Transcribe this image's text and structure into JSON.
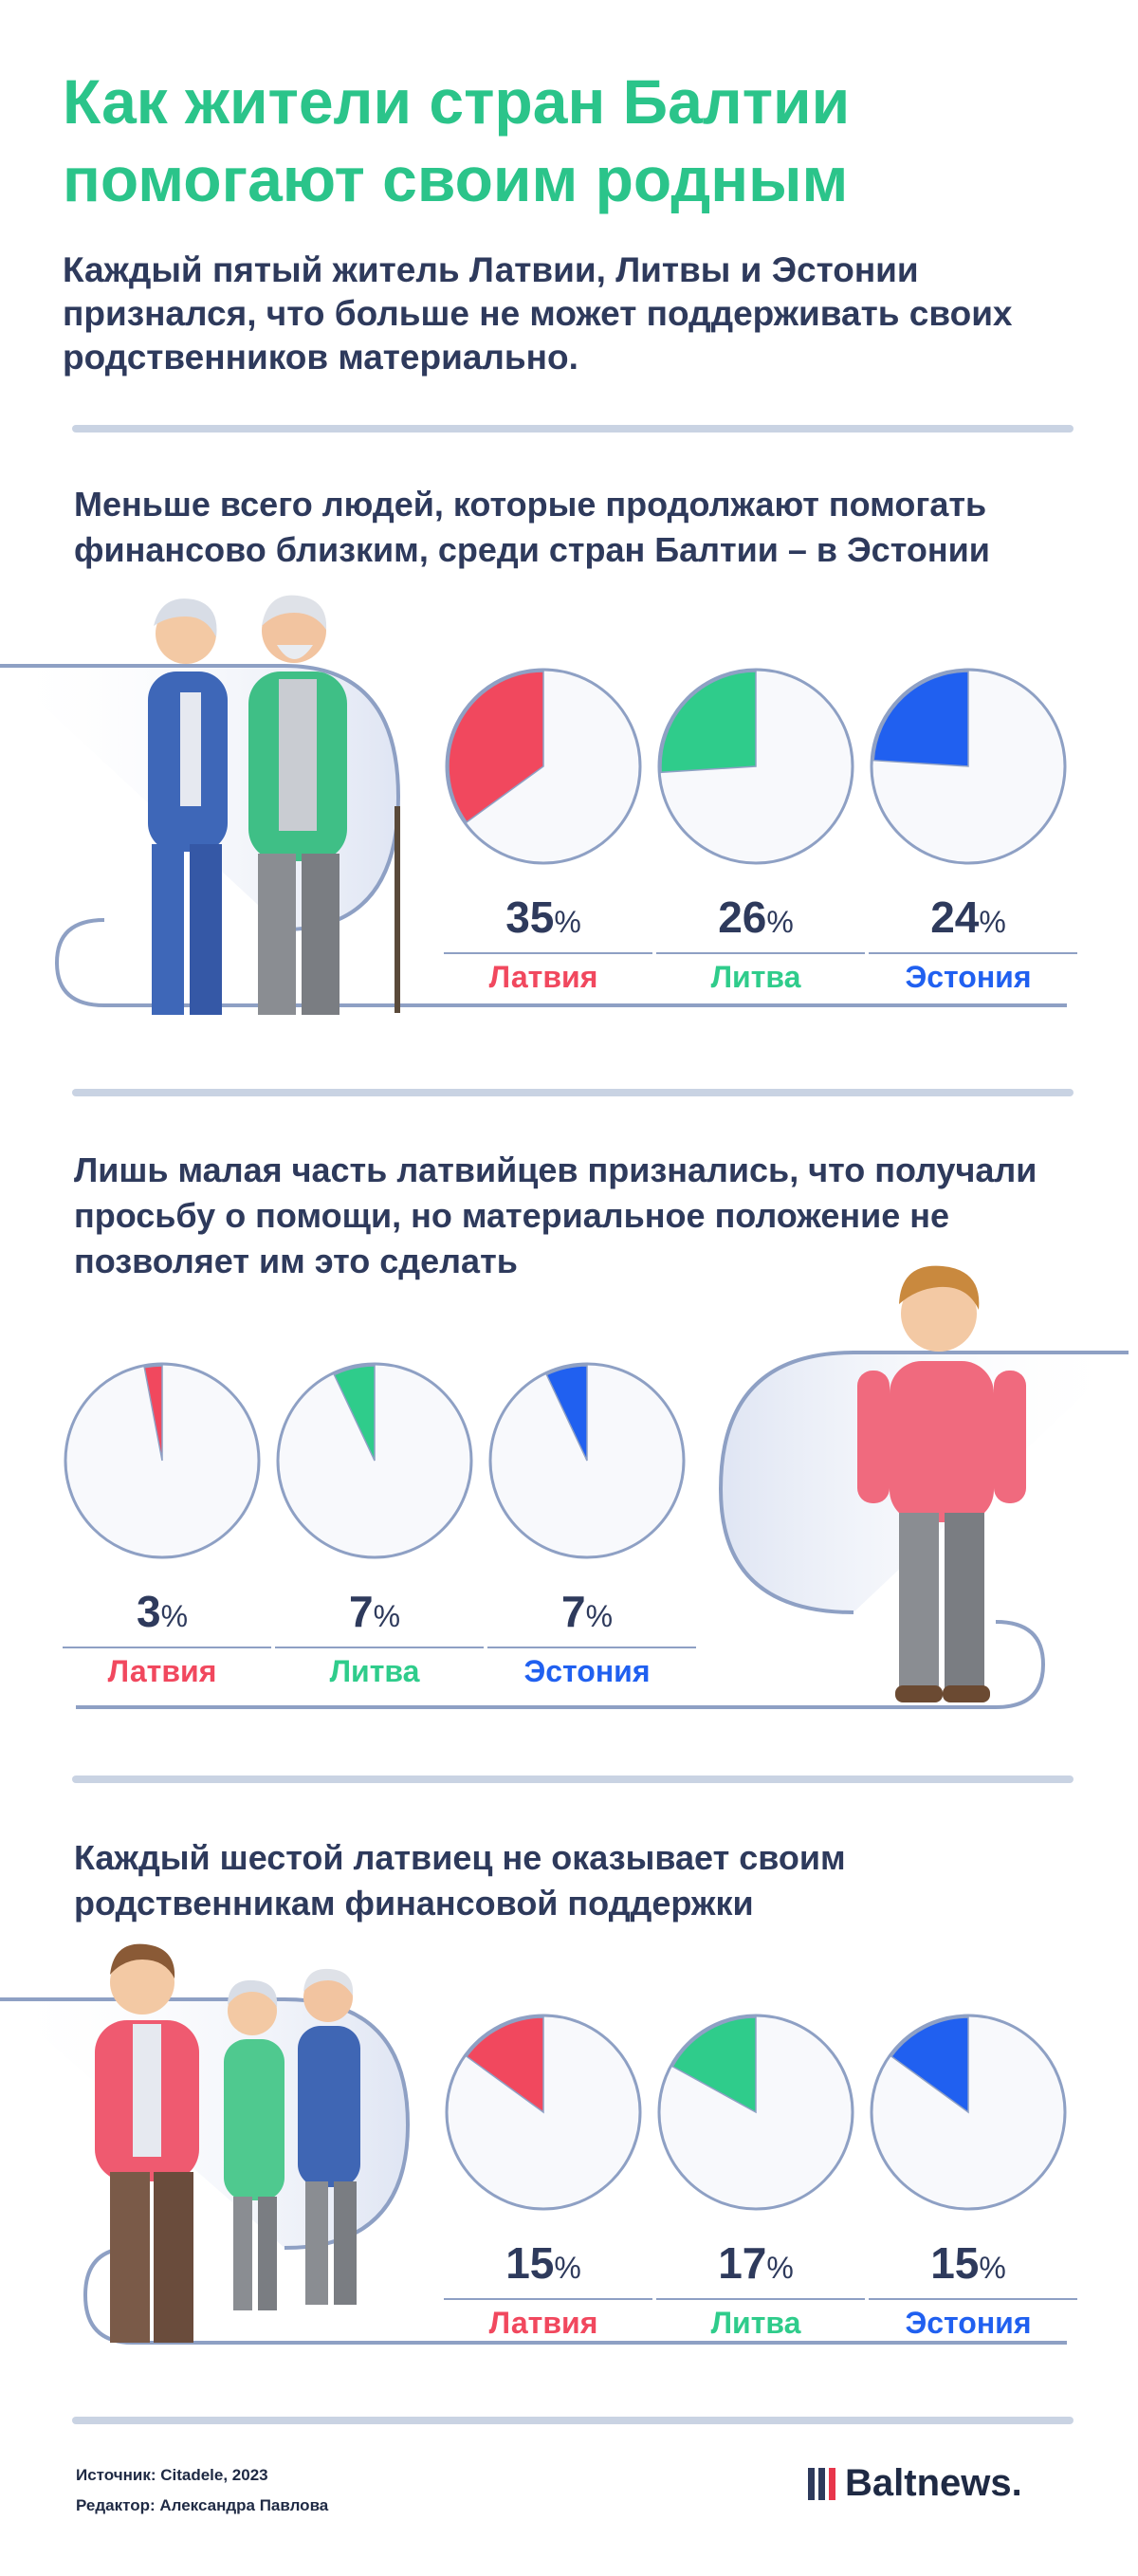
{
  "title": "Как жители стран Балтии помогают своим родным",
  "lead": "Каждый пятый житель Латвии, Литвы и Эстонии признался, что больше не может поддерживать своих родственников материально.",
  "colors": {
    "latvia": "#f1485e",
    "lithuania": "#2fcc8b",
    "estonia": "#2060f0",
    "title": "#2bc48a",
    "text": "#2e3a5c"
  },
  "percent_symbol": "%",
  "sections": [
    {
      "title": "Меньше всего людей, которые продолжают помогать финансово близким, среди стран Балтии – в Эстонии",
      "items": [
        {
          "country": "Латвия",
          "value": 35,
          "value_label": "35"
        },
        {
          "country": "Литва",
          "value": 26,
          "value_label": "26"
        },
        {
          "country": "Эстония",
          "value": 24,
          "value_label": "24"
        }
      ]
    },
    {
      "title": "Лишь малая часть латвийцев признались, что получали просьбу о помощи, но материальное положение не позволяет им это сделать",
      "items": [
        {
          "country": "Латвия",
          "value": 3,
          "value_label": "3"
        },
        {
          "country": "Литва",
          "value": 7,
          "value_label": "7"
        },
        {
          "country": "Эстония",
          "value": 7,
          "value_label": "7"
        }
      ]
    },
    {
      "title": "Каждый шестой латвиец не оказывает своим родственникам финансовой поддержки",
      "items": [
        {
          "country": "Латвия",
          "value": 15,
          "value_label": "15"
        },
        {
          "country": "Литва",
          "value": 17,
          "value_label": "17"
        },
        {
          "country": "Эстония",
          "value": 15,
          "value_label": "15"
        }
      ]
    }
  ],
  "footer": {
    "source": "Источник: Citadele, 2023",
    "editor": "Редактор: Александра Павлова"
  },
  "logo": {
    "text": "Baltnews."
  },
  "chart_data": [
    {
      "type": "pie",
      "title": "Меньше всего людей, которые продолжают помогать финансово близким, среди стран Балтии – в Эстонии",
      "categories": [
        "Латвия",
        "Литва",
        "Эстония"
      ],
      "values": [
        35,
        26,
        24
      ],
      "unit": "%"
    },
    {
      "type": "pie",
      "title": "Лишь малая часть латвийцев признались, что получали просьбу о помощи, но материальное положение не позволяет им это сделать",
      "categories": [
        "Латвия",
        "Литва",
        "Эстония"
      ],
      "values": [
        3,
        7,
        7
      ],
      "unit": "%"
    },
    {
      "type": "pie",
      "title": "Каждый шестой латвиец не оказывает своим родственникам финансовой поддержки",
      "categories": [
        "Латвия",
        "Литва",
        "Эстония"
      ],
      "values": [
        15,
        17,
        15
      ],
      "unit": "%"
    }
  ]
}
